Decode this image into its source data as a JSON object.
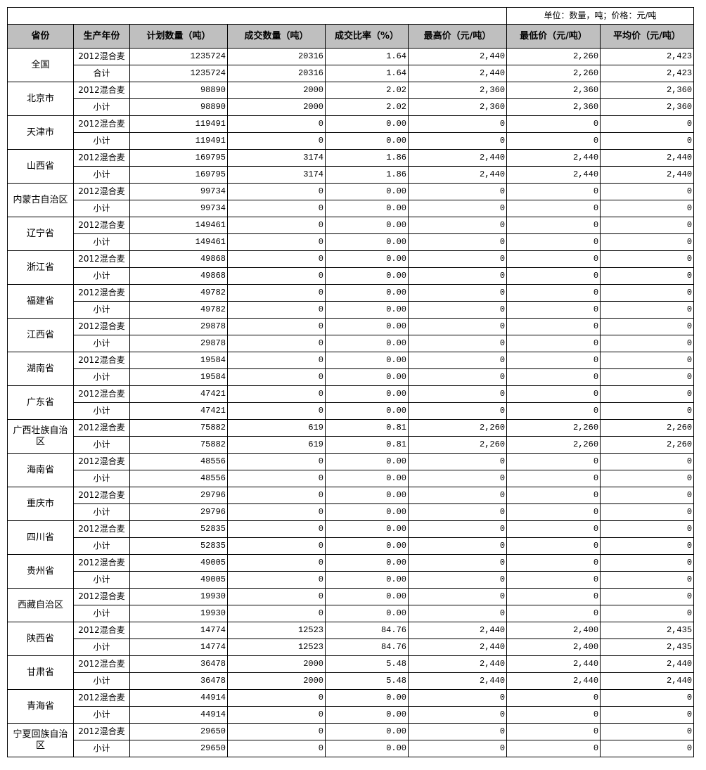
{
  "unit_note": "单位：数量，吨；价格：元/吨",
  "columns": [
    "省份",
    "生产年份",
    "计划数量（吨）",
    "成交数量（吨）",
    "成交比率（%）",
    "最高价（元/吨）",
    "最低价（元/吨）",
    "平均价（元/吨）"
  ],
  "provinces": [
    {
      "name": "全国",
      "rows": [
        [
          "2012混合麦",
          "1235724",
          "20316",
          "1.64",
          "2,440",
          "2,260",
          "2,423"
        ],
        [
          "合计",
          "1235724",
          "20316",
          "1.64",
          "2,440",
          "2,260",
          "2,423"
        ]
      ]
    },
    {
      "name": "北京市",
      "rows": [
        [
          "2012混合麦",
          "98890",
          "2000",
          "2.02",
          "2,360",
          "2,360",
          "2,360"
        ],
        [
          "小计",
          "98890",
          "2000",
          "2.02",
          "2,360",
          "2,360",
          "2,360"
        ]
      ]
    },
    {
      "name": "天津市",
      "rows": [
        [
          "2012混合麦",
          "119491",
          "0",
          "0.00",
          "0",
          "0",
          "0"
        ],
        [
          "小计",
          "119491",
          "0",
          "0.00",
          "0",
          "0",
          "0"
        ]
      ]
    },
    {
      "name": "山西省",
      "rows": [
        [
          "2012混合麦",
          "169795",
          "3174",
          "1.86",
          "2,440",
          "2,440",
          "2,440"
        ],
        [
          "小计",
          "169795",
          "3174",
          "1.86",
          "2,440",
          "2,440",
          "2,440"
        ]
      ]
    },
    {
      "name": "内蒙古自治区",
      "rows": [
        [
          "2012混合麦",
          "99734",
          "0",
          "0.00",
          "0",
          "0",
          "0"
        ],
        [
          "小计",
          "99734",
          "0",
          "0.00",
          "0",
          "0",
          "0"
        ]
      ]
    },
    {
      "name": "辽宁省",
      "rows": [
        [
          "2012混合麦",
          "149461",
          "0",
          "0.00",
          "0",
          "0",
          "0"
        ],
        [
          "小计",
          "149461",
          "0",
          "0.00",
          "0",
          "0",
          "0"
        ]
      ]
    },
    {
      "name": "浙江省",
      "rows": [
        [
          "2012混合麦",
          "49868",
          "0",
          "0.00",
          "0",
          "0",
          "0"
        ],
        [
          "小计",
          "49868",
          "0",
          "0.00",
          "0",
          "0",
          "0"
        ]
      ]
    },
    {
      "name": "福建省",
      "rows": [
        [
          "2012混合麦",
          "49782",
          "0",
          "0.00",
          "0",
          "0",
          "0"
        ],
        [
          "小计",
          "49782",
          "0",
          "0.00",
          "0",
          "0",
          "0"
        ]
      ]
    },
    {
      "name": "江西省",
      "rows": [
        [
          "2012混合麦",
          "29878",
          "0",
          "0.00",
          "0",
          "0",
          "0"
        ],
        [
          "小计",
          "29878",
          "0",
          "0.00",
          "0",
          "0",
          "0"
        ]
      ]
    },
    {
      "name": "湖南省",
      "rows": [
        [
          "2012混合麦",
          "19584",
          "0",
          "0.00",
          "0",
          "0",
          "0"
        ],
        [
          "小计",
          "19584",
          "0",
          "0.00",
          "0",
          "0",
          "0"
        ]
      ]
    },
    {
      "name": "广东省",
      "rows": [
        [
          "2012混合麦",
          "47421",
          "0",
          "0.00",
          "0",
          "0",
          "0"
        ],
        [
          "小计",
          "47421",
          "0",
          "0.00",
          "0",
          "0",
          "0"
        ]
      ]
    },
    {
      "name": "广西壮族自治区",
      "rows": [
        [
          "2012混合麦",
          "75882",
          "619",
          "0.81",
          "2,260",
          "2,260",
          "2,260"
        ],
        [
          "小计",
          "75882",
          "619",
          "0.81",
          "2,260",
          "2,260",
          "2,260"
        ]
      ]
    },
    {
      "name": "海南省",
      "rows": [
        [
          "2012混合麦",
          "48556",
          "0",
          "0.00",
          "0",
          "0",
          "0"
        ],
        [
          "小计",
          "48556",
          "0",
          "0.00",
          "0",
          "0",
          "0"
        ]
      ]
    },
    {
      "name": "重庆市",
      "rows": [
        [
          "2012混合麦",
          "29796",
          "0",
          "0.00",
          "0",
          "0",
          "0"
        ],
        [
          "小计",
          "29796",
          "0",
          "0.00",
          "0",
          "0",
          "0"
        ]
      ]
    },
    {
      "name": "四川省",
      "rows": [
        [
          "2012混合麦",
          "52835",
          "0",
          "0.00",
          "0",
          "0",
          "0"
        ],
        [
          "小计",
          "52835",
          "0",
          "0.00",
          "0",
          "0",
          "0"
        ]
      ]
    },
    {
      "name": "贵州省",
      "rows": [
        [
          "2012混合麦",
          "49005",
          "0",
          "0.00",
          "0",
          "0",
          "0"
        ],
        [
          "小计",
          "49005",
          "0",
          "0.00",
          "0",
          "0",
          "0"
        ]
      ]
    },
    {
      "name": "西藏自治区",
      "rows": [
        [
          "2012混合麦",
          "19930",
          "0",
          "0.00",
          "0",
          "0",
          "0"
        ],
        [
          "小计",
          "19930",
          "0",
          "0.00",
          "0",
          "0",
          "0"
        ]
      ]
    },
    {
      "name": "陕西省",
      "rows": [
        [
          "2012混合麦",
          "14774",
          "12523",
          "84.76",
          "2,440",
          "2,400",
          "2,435"
        ],
        [
          "小计",
          "14774",
          "12523",
          "84.76",
          "2,440",
          "2,400",
          "2,435"
        ]
      ]
    },
    {
      "name": "甘肃省",
      "rows": [
        [
          "2012混合麦",
          "36478",
          "2000",
          "5.48",
          "2,440",
          "2,440",
          "2,440"
        ],
        [
          "小计",
          "36478",
          "2000",
          "5.48",
          "2,440",
          "2,440",
          "2,440"
        ]
      ]
    },
    {
      "name": "青海省",
      "rows": [
        [
          "2012混合麦",
          "44914",
          "0",
          "0.00",
          "0",
          "0",
          "0"
        ],
        [
          "小计",
          "44914",
          "0",
          "0.00",
          "0",
          "0",
          "0"
        ]
      ]
    },
    {
      "name": "宁夏回族自治区",
      "rows": [
        [
          "2012混合麦",
          "29650",
          "0",
          "0.00",
          "0",
          "0",
          "0"
        ],
        [
          "小计",
          "29650",
          "0",
          "0.00",
          "0",
          "0",
          "0"
        ]
      ]
    }
  ]
}
